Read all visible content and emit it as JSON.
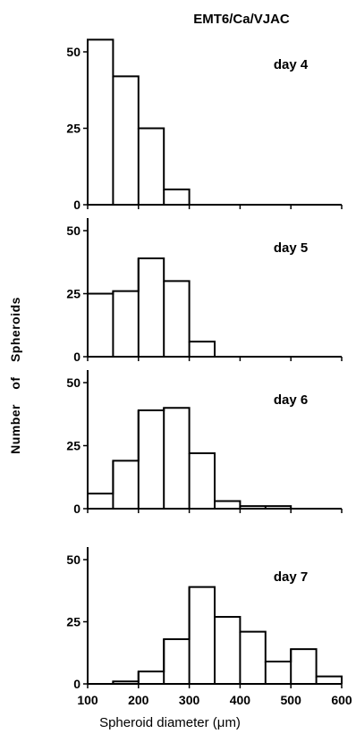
{
  "title": "EMT6/Ca/VJAC",
  "ylabel": "Number of Spheroids",
  "xlabel": "Spheroid diameter (μm)",
  "chart_data": [
    {
      "type": "bar",
      "label": "day 4",
      "bin_edges": [
        100,
        150,
        200,
        250,
        300,
        350,
        400,
        450,
        500,
        550,
        600
      ],
      "values": [
        54,
        42,
        25,
        5,
        0,
        0,
        0,
        0,
        0,
        0
      ],
      "xlim": [
        100,
        600
      ],
      "ylim": [
        0,
        50
      ],
      "yticks": [
        "0",
        "25",
        "50"
      ]
    },
    {
      "type": "bar",
      "label": "day 5",
      "bin_edges": [
        100,
        150,
        200,
        250,
        300,
        350,
        400,
        450,
        500,
        550,
        600
      ],
      "values": [
        25,
        26,
        39,
        30,
        6,
        0,
        0,
        0,
        0,
        0
      ],
      "xlim": [
        100,
        600
      ],
      "ylim": [
        0,
        50
      ],
      "yticks": [
        "0",
        "25",
        "50"
      ]
    },
    {
      "type": "bar",
      "label": "day 6",
      "bin_edges": [
        100,
        150,
        200,
        250,
        300,
        350,
        400,
        450,
        500,
        550,
        600
      ],
      "values": [
        6,
        19,
        39,
        40,
        22,
        3,
        1,
        1,
        0,
        0
      ],
      "xlim": [
        100,
        600
      ],
      "ylim": [
        0,
        50
      ],
      "yticks": [
        "0",
        "25",
        "50"
      ]
    },
    {
      "type": "bar",
      "label": "day 7",
      "bin_edges": [
        100,
        150,
        200,
        250,
        300,
        350,
        400,
        450,
        500,
        550,
        600
      ],
      "values": [
        0,
        1,
        5,
        18,
        39,
        27,
        21,
        9,
        14,
        3
      ],
      "xlim": [
        100,
        600
      ],
      "ylim": [
        0,
        50
      ],
      "yticks": [
        "0",
        "25",
        "50"
      ],
      "xticks": [
        "100",
        "200",
        "300",
        "400",
        "500",
        "600"
      ]
    }
  ]
}
